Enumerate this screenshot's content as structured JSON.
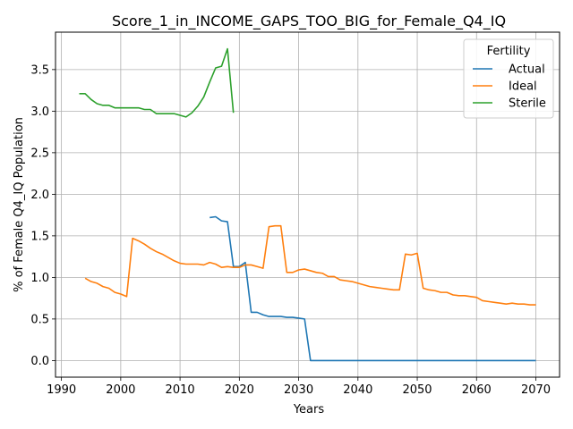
{
  "chart_data": {
    "type": "line",
    "title": "Score_1_in_INCOME_GAPS_TOO_BIG_for_Female_Q4_IQ",
    "xlabel": "Years",
    "ylabel": "% of Female Q4_IQ Population",
    "xlim": [
      1989,
      2074
    ],
    "ylim": [
      -0.2,
      3.95
    ],
    "xticks": [
      1990,
      2000,
      2010,
      2020,
      2030,
      2040,
      2050,
      2060,
      2070
    ],
    "yticks": [
      0.0,
      0.5,
      1.0,
      1.5,
      2.0,
      2.5,
      3.0,
      3.5
    ],
    "xtick_labels": [
      "1990",
      "2000",
      "2010",
      "2020",
      "2030",
      "2040",
      "2050",
      "2060",
      "2070"
    ],
    "ytick_labels": [
      "0.0",
      "0.5",
      "1.0",
      "1.5",
      "2.0",
      "2.5",
      "3.0",
      "3.5"
    ],
    "grid": true,
    "legend": {
      "title": "Fertility",
      "placement": "top-right"
    },
    "series": [
      {
        "name": "Actual",
        "color": "#1f77b4",
        "x": [
          2015,
          2016,
          2017,
          2018,
          2019,
          2020,
          2021,
          2022,
          2023,
          2024,
          2025,
          2026,
          2027,
          2028,
          2029,
          2030,
          2031,
          2032,
          2033,
          2034,
          2035,
          2040,
          2045,
          2050,
          2055,
          2060,
          2065,
          2070
        ],
        "y": [
          1.72,
          1.73,
          1.68,
          1.67,
          1.13,
          1.13,
          1.18,
          0.58,
          0.58,
          0.55,
          0.53,
          0.53,
          0.53,
          0.52,
          0.52,
          0.51,
          0.5,
          0.0,
          0.0,
          0.0,
          0.0,
          0.0,
          0.0,
          0.0,
          0.0,
          0.0,
          0.0,
          0.0
        ]
      },
      {
        "name": "Ideal",
        "color": "#ff7f0e",
        "x": [
          1994,
          1995,
          1996,
          1997,
          1998,
          1999,
          2000,
          2001,
          2002,
          2003,
          2004,
          2005,
          2006,
          2007,
          2008,
          2009,
          2010,
          2011,
          2012,
          2013,
          2014,
          2015,
          2016,
          2017,
          2018,
          2019,
          2020,
          2021,
          2022,
          2023,
          2024,
          2025,
          2026,
          2027,
          2028,
          2029,
          2030,
          2031,
          2032,
          2033,
          2034,
          2035,
          2036,
          2037,
          2038,
          2039,
          2040,
          2041,
          2042,
          2043,
          2044,
          2045,
          2046,
          2047,
          2048,
          2049,
          2050,
          2051,
          2052,
          2053,
          2054,
          2055,
          2056,
          2057,
          2058,
          2059,
          2060,
          2061,
          2062,
          2063,
          2064,
          2065,
          2066,
          2067,
          2068,
          2069,
          2070
        ],
        "y": [
          0.99,
          0.95,
          0.93,
          0.89,
          0.87,
          0.82,
          0.8,
          0.77,
          1.47,
          1.44,
          1.4,
          1.35,
          1.31,
          1.28,
          1.24,
          1.2,
          1.17,
          1.16,
          1.16,
          1.16,
          1.15,
          1.18,
          1.16,
          1.12,
          1.13,
          1.12,
          1.12,
          1.15,
          1.15,
          1.13,
          1.11,
          1.61,
          1.62,
          1.62,
          1.06,
          1.06,
          1.09,
          1.1,
          1.08,
          1.06,
          1.05,
          1.01,
          1.01,
          0.97,
          0.96,
          0.95,
          0.93,
          0.91,
          0.89,
          0.88,
          0.87,
          0.86,
          0.85,
          0.85,
          1.28,
          1.27,
          1.29,
          0.87,
          0.85,
          0.84,
          0.82,
          0.82,
          0.79,
          0.78,
          0.78,
          0.77,
          0.76,
          0.72,
          0.71,
          0.7,
          0.69,
          0.68,
          0.69,
          0.68,
          0.68,
          0.67,
          0.67
        ]
      },
      {
        "name": "Sterile",
        "color": "#2ca02c",
        "x": [
          1993,
          1994,
          1995,
          1996,
          1997,
          1998,
          1999,
          2000,
          2001,
          2002,
          2003,
          2004,
          2005,
          2006,
          2007,
          2008,
          2009,
          2010,
          2011,
          2012,
          2013,
          2014,
          2015,
          2016,
          2017,
          2018,
          2019
        ],
        "y": [
          3.21,
          3.21,
          3.14,
          3.09,
          3.07,
          3.07,
          3.04,
          3.04,
          3.04,
          3.04,
          3.04,
          3.02,
          3.02,
          2.97,
          2.97,
          2.97,
          2.97,
          2.95,
          2.93,
          2.98,
          3.06,
          3.17,
          3.35,
          3.52,
          3.54,
          3.75,
          2.98
        ]
      }
    ]
  }
}
